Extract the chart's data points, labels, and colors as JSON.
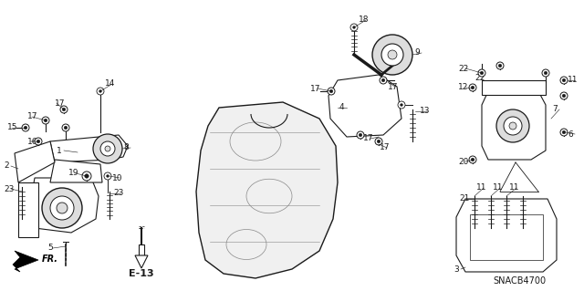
{
  "background_color": "#ffffff",
  "diagram_code": "SNACB4700",
  "ref_code": "E-13",
  "fig_width": 6.4,
  "fig_height": 3.19,
  "dpi": 100,
  "dark": "#1a1a1a",
  "gray": "#aaaaaa",
  "light_gray": "#dddddd",
  "mid_gray": "#888888"
}
